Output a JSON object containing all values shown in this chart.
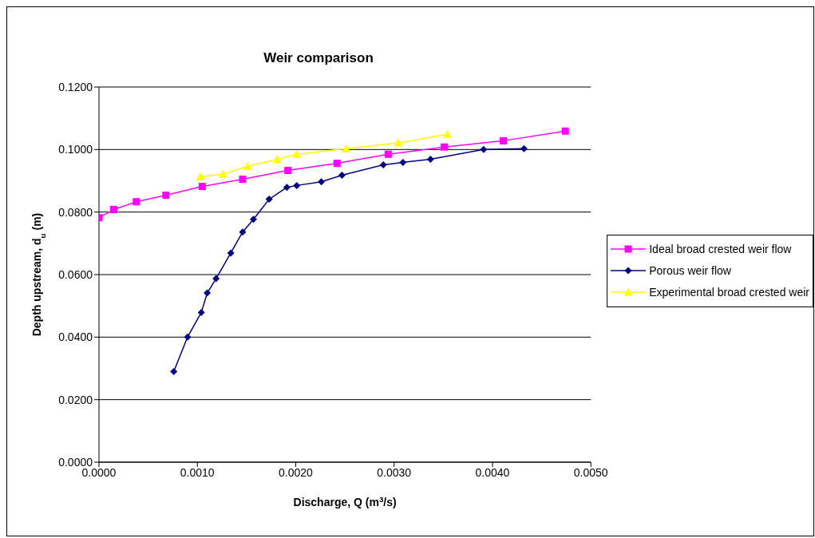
{
  "chart_data": {
    "type": "line",
    "title": "Weir comparison",
    "xlabel": "Discharge, Q (m$^{3}$/s)",
    "ylabel": "Depth upstream, d$_{u}$ (m)",
    "xlim": [
      0,
      0.005
    ],
    "xticks": [
      {
        "value": 0,
        "label": "0.0000"
      },
      {
        "value": 0.001,
        "label": "0.0010"
      },
      {
        "value": 0.002,
        "label": "0.0020"
      },
      {
        "value": 0.003,
        "label": "0.0030"
      },
      {
        "value": 0.004,
        "label": "0.0040"
      },
      {
        "value": 0.005,
        "label": "0.0050"
      }
    ],
    "ylim": [
      0,
      0.12
    ],
    "yticks": [
      {
        "value": 0,
        "label": "0.0000"
      },
      {
        "value": 0.02,
        "label": "0.0200"
      },
      {
        "value": 0.04,
        "label": "0.0400"
      },
      {
        "value": 0.06,
        "label": "0.0600"
      },
      {
        "value": 0.08,
        "label": "0.0800"
      },
      {
        "value": 0.1,
        "label": "0.1000"
      },
      {
        "value": 0.12,
        "label": "0.1200"
      }
    ],
    "grid": "y",
    "legend": "right",
    "series": [
      {
        "name": "Ideal broad crested weir flow",
        "color": "#ff00ff",
        "marker": "square",
        "x": [
          0,
          0.00015,
          0.00038,
          0.00068,
          0.00105,
          0.00146,
          0.00192,
          0.00242,
          0.00294,
          0.00351,
          0.00411,
          0.00474
        ],
        "values": [
          0.0782,
          0.0808,
          0.0833,
          0.0854,
          0.0882,
          0.0905,
          0.0933,
          0.0956,
          0.0985,
          0.1008,
          0.1028,
          0.1059
        ]
      },
      {
        "name": "Porous weir flow",
        "color": "#000080",
        "marker": "diamond",
        "x": [
          0.00076,
          0.0009,
          0.00104,
          0.0011,
          0.00119,
          0.00134,
          0.00146,
          0.00157,
          0.00173,
          0.00191,
          0.00201,
          0.00226,
          0.00247,
          0.00289,
          0.00309,
          0.00337,
          0.00391,
          0.00432
        ],
        "values": [
          0.029,
          0.04,
          0.0479,
          0.0541,
          0.0587,
          0.0669,
          0.0736,
          0.0777,
          0.0841,
          0.0879,
          0.0885,
          0.0897,
          0.0918,
          0.0951,
          0.0959,
          0.0969,
          0.1,
          0.1003
        ]
      },
      {
        "name": "Experimental broad crested weir",
        "color": "#ffff00",
        "marker": "triangle",
        "x": [
          0.00103,
          0.00126,
          0.00151,
          0.00181,
          0.00201,
          0.00251,
          0.00304,
          0.00354
        ],
        "values": [
          0.0913,
          0.0921,
          0.0946,
          0.0969,
          0.0985,
          0.1003,
          0.1021,
          0.1049
        ]
      }
    ]
  }
}
